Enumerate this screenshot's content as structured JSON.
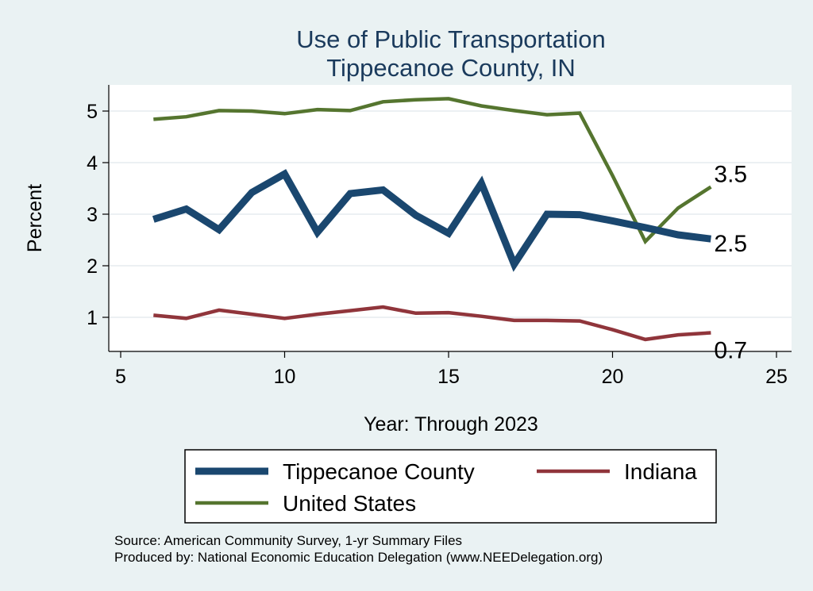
{
  "chart_data": {
    "type": "line",
    "title": "Use of Public Transportation",
    "subtitle": "Tippecanoe County, IN",
    "xlabel": "Year: Through 2023",
    "ylabel": "Percent",
    "xlim": [
      5,
      25
    ],
    "ylim": [
      0.3,
      5.5
    ],
    "xticks": [
      5,
      10,
      15,
      20,
      25
    ],
    "yticks": [
      1,
      2,
      3,
      4,
      5
    ],
    "grid": true,
    "series": [
      {
        "name": "Tippecanoe County",
        "color": "#1a476f",
        "x": [
          6,
          7,
          8,
          9,
          10,
          11,
          12,
          13,
          14,
          15,
          16,
          17,
          18,
          19,
          20,
          21,
          22,
          23
        ],
        "values": [
          2.9,
          3.1,
          2.7,
          3.42,
          3.78,
          2.65,
          3.4,
          3.47,
          2.98,
          2.63,
          3.6,
          2.03,
          3.0,
          2.99,
          2.87,
          2.74,
          2.6,
          2.52
        ],
        "end_label": "2.5"
      },
      {
        "name": "Indiana",
        "color": "#90353b",
        "x": [
          6,
          7,
          8,
          9,
          10,
          11,
          12,
          13,
          14,
          15,
          16,
          17,
          18,
          19,
          20,
          21,
          22,
          23
        ],
        "values": [
          1.04,
          0.98,
          1.14,
          1.06,
          0.98,
          1.06,
          1.13,
          1.2,
          1.08,
          1.09,
          1.02,
          0.94,
          0.94,
          0.93,
          0.76,
          0.57,
          0.66,
          0.7
        ],
        "end_label": "0.7"
      },
      {
        "name": "United States",
        "color": "#55752f",
        "x": [
          6,
          7,
          8,
          9,
          10,
          11,
          12,
          13,
          14,
          15,
          16,
          17,
          18,
          19,
          20,
          21,
          22,
          23
        ],
        "values": [
          4.84,
          4.89,
          5.01,
          5.0,
          4.95,
          5.03,
          5.01,
          5.18,
          5.22,
          5.24,
          5.1,
          5.01,
          4.93,
          4.96,
          3.75,
          2.47,
          3.12,
          3.53
        ],
        "end_label": "3.5"
      }
    ],
    "legend": {
      "placement": "bottom",
      "entries": [
        "Tippecanoe County",
        "Indiana",
        "United States"
      ]
    },
    "note": [
      "Source: American Community Survey, 1-yr Summary Files",
      "Produced by: National Economic Education Delegation (www.NEEDelegation.org)"
    ]
  },
  "colors": {
    "background": "#eaf2f3",
    "plot_background": "#ffffff",
    "title": "#1a3a5c"
  }
}
